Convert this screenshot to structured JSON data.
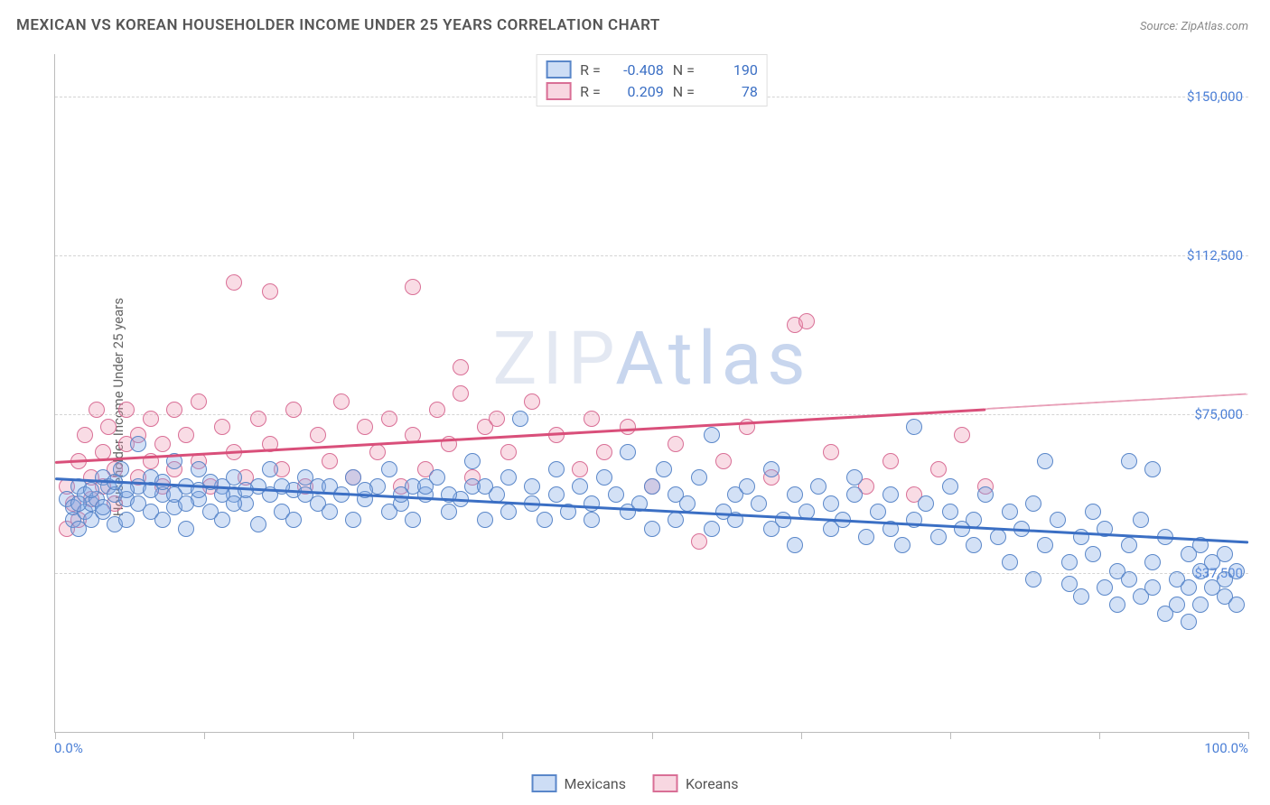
{
  "title": "MEXICAN VS KOREAN HOUSEHOLDER INCOME UNDER 25 YEARS CORRELATION CHART",
  "source_label": "Source: ",
  "source_name": "ZipAtlas.com",
  "ylabel": "Householder Income Under 25 years",
  "watermark": "ZIPAtlas",
  "watermark_color_1": "#e3e8f2",
  "watermark_color_2": "#c8d6ee",
  "chart": {
    "type": "scatter",
    "xlim": [
      0,
      100
    ],
    "ylim": [
      0,
      160000
    ],
    "xmin_label": "0.0%",
    "xmax_label": "100.0%",
    "yticks": [
      37500,
      75000,
      112500,
      150000
    ],
    "ytick_labels": [
      "$37,500",
      "$75,000",
      "$112,500",
      "$150,000"
    ],
    "xtick_positions": [
      0,
      12.5,
      25,
      37.5,
      50,
      62.5,
      75,
      87.5,
      100
    ],
    "grid_color": "#d4d4d4",
    "axis_color": "#bbbbbb",
    "background_color": "#ffffff",
    "point_radius": 9,
    "series": [
      {
        "name": "Mexicans",
        "legend_color_fill": "rgba(130,170,230,0.4)",
        "legend_color_stroke": "#5a87c9",
        "trend_color": "#3b6fc4",
        "R_label": "R =",
        "R": "-0.408",
        "N_label": "N =",
        "N": "190",
        "trend": {
          "x1": 0,
          "y1": 60000,
          "x2": 100,
          "y2": 45000,
          "dash_from_x": null
        },
        "points": [
          [
            1,
            55000
          ],
          [
            1.5,
            50000
          ],
          [
            1.5,
            53000
          ],
          [
            2,
            58000
          ],
          [
            2,
            48000
          ],
          [
            2.5,
            52000
          ],
          [
            2.5,
            56000
          ],
          [
            3,
            54000
          ],
          [
            3,
            50000
          ],
          [
            3.5,
            55000
          ],
          [
            4,
            60000
          ],
          [
            4,
            52000
          ],
          [
            4.5,
            58000
          ],
          [
            5,
            49000
          ],
          [
            5,
            56000
          ],
          [
            5.5,
            62000
          ],
          [
            6,
            50000
          ],
          [
            6,
            55000
          ],
          [
            7,
            58000
          ],
          [
            7,
            68000
          ],
          [
            8,
            52000
          ],
          [
            8,
            60000
          ],
          [
            9,
            56000
          ],
          [
            9,
            50000
          ],
          [
            10,
            64000
          ],
          [
            10,
            53000
          ],
          [
            11,
            58000
          ],
          [
            11,
            48000
          ],
          [
            12,
            55000
          ],
          [
            12,
            62000
          ],
          [
            13,
            52000
          ],
          [
            14,
            58000
          ],
          [
            14,
            50000
          ],
          [
            15,
            56000
          ],
          [
            15,
            60000
          ],
          [
            16,
            54000
          ],
          [
            17,
            58000
          ],
          [
            17,
            49000
          ],
          [
            18,
            62000
          ],
          [
            19,
            52000
          ],
          [
            20,
            57000
          ],
          [
            20,
            50000
          ],
          [
            21,
            60000
          ],
          [
            22,
            54000
          ],
          [
            22,
            58000
          ],
          [
            23,
            52000
          ],
          [
            24,
            56000
          ],
          [
            25,
            60000
          ],
          [
            25,
            50000
          ],
          [
            26,
            55000
          ],
          [
            27,
            58000
          ],
          [
            28,
            52000
          ],
          [
            28,
            62000
          ],
          [
            29,
            54000
          ],
          [
            30,
            58000
          ],
          [
            30,
            50000
          ],
          [
            31,
            56000
          ],
          [
            32,
            60000
          ],
          [
            33,
            52000
          ],
          [
            34,
            55000
          ],
          [
            35,
            58000
          ],
          [
            35,
            64000
          ],
          [
            36,
            50000
          ],
          [
            37,
            56000
          ],
          [
            38,
            60000
          ],
          [
            38,
            52000
          ],
          [
            39,
            74000
          ],
          [
            40,
            54000
          ],
          [
            40,
            58000
          ],
          [
            41,
            50000
          ],
          [
            42,
            56000
          ],
          [
            42,
            62000
          ],
          [
            43,
            52000
          ],
          [
            44,
            58000
          ],
          [
            45,
            54000
          ],
          [
            45,
            50000
          ],
          [
            46,
            60000
          ],
          [
            47,
            56000
          ],
          [
            48,
            52000
          ],
          [
            48,
            66000
          ],
          [
            49,
            54000
          ],
          [
            50,
            58000
          ],
          [
            50,
            48000
          ],
          [
            51,
            62000
          ],
          [
            52,
            50000
          ],
          [
            52,
            56000
          ],
          [
            53,
            54000
          ],
          [
            54,
            60000
          ],
          [
            55,
            48000
          ],
          [
            55,
            70000
          ],
          [
            56,
            52000
          ],
          [
            57,
            56000
          ],
          [
            57,
            50000
          ],
          [
            58,
            58000
          ],
          [
            59,
            54000
          ],
          [
            60,
            48000
          ],
          [
            60,
            62000
          ],
          [
            61,
            50000
          ],
          [
            62,
            56000
          ],
          [
            62,
            44000
          ],
          [
            63,
            52000
          ],
          [
            64,
            58000
          ],
          [
            65,
            48000
          ],
          [
            65,
            54000
          ],
          [
            66,
            50000
          ],
          [
            67,
            56000
          ],
          [
            67,
            60000
          ],
          [
            68,
            46000
          ],
          [
            69,
            52000
          ],
          [
            70,
            48000
          ],
          [
            70,
            56000
          ],
          [
            71,
            44000
          ],
          [
            72,
            50000
          ],
          [
            72,
            72000
          ],
          [
            73,
            54000
          ],
          [
            74,
            46000
          ],
          [
            75,
            52000
          ],
          [
            75,
            58000
          ],
          [
            76,
            48000
          ],
          [
            77,
            50000
          ],
          [
            77,
            44000
          ],
          [
            78,
            56000
          ],
          [
            79,
            46000
          ],
          [
            80,
            52000
          ],
          [
            80,
            40000
          ],
          [
            81,
            48000
          ],
          [
            82,
            54000
          ],
          [
            82,
            36000
          ],
          [
            83,
            44000
          ],
          [
            83,
            64000
          ],
          [
            84,
            50000
          ],
          [
            85,
            40000
          ],
          [
            85,
            35000
          ],
          [
            86,
            46000
          ],
          [
            86,
            32000
          ],
          [
            87,
            42000
          ],
          [
            87,
            52000
          ],
          [
            88,
            34000
          ],
          [
            88,
            48000
          ],
          [
            89,
            38000
          ],
          [
            89,
            30000
          ],
          [
            90,
            44000
          ],
          [
            90,
            36000
          ],
          [
            90,
            64000
          ],
          [
            91,
            32000
          ],
          [
            91,
            50000
          ],
          [
            92,
            40000
          ],
          [
            92,
            34000
          ],
          [
            92,
            62000
          ],
          [
            93,
            28000
          ],
          [
            93,
            46000
          ],
          [
            94,
            36000
          ],
          [
            94,
            30000
          ],
          [
            95,
            42000
          ],
          [
            95,
            34000
          ],
          [
            95,
            26000
          ],
          [
            96,
            38000
          ],
          [
            96,
            44000
          ],
          [
            96,
            30000
          ],
          [
            97,
            34000
          ],
          [
            97,
            40000
          ],
          [
            98,
            32000
          ],
          [
            98,
            36000
          ],
          [
            98,
            42000
          ],
          [
            99,
            30000
          ],
          [
            99,
            38000
          ],
          [
            2,
            54000
          ],
          [
            3,
            57000
          ],
          [
            4,
            53000
          ],
          [
            5,
            59000
          ],
          [
            6,
            57000
          ],
          [
            7,
            54000
          ],
          [
            8,
            57000
          ],
          [
            9,
            59000
          ],
          [
            10,
            56000
          ],
          [
            11,
            54000
          ],
          [
            12,
            57000
          ],
          [
            13,
            59000
          ],
          [
            14,
            56000
          ],
          [
            15,
            54000
          ],
          [
            16,
            57000
          ],
          [
            18,
            56000
          ],
          [
            19,
            58000
          ],
          [
            21,
            56000
          ],
          [
            23,
            58000
          ],
          [
            26,
            57000
          ],
          [
            29,
            56000
          ],
          [
            31,
            58000
          ],
          [
            33,
            56000
          ],
          [
            36,
            58000
          ]
        ]
      },
      {
        "name": "Koreans",
        "legend_color_fill": "rgba(235,140,170,0.35)",
        "legend_color_stroke": "#d96f96",
        "trend_color": "#d94f7a",
        "R_label": "R =",
        "R": "0.209",
        "N_label": "N =",
        "N": "78",
        "trend": {
          "x1": 0,
          "y1": 64000,
          "x2": 100,
          "y2": 80000,
          "dash_from_x": 78
        },
        "points": [
          [
            1,
            58000
          ],
          [
            1,
            48000
          ],
          [
            1.5,
            54000
          ],
          [
            2,
            64000
          ],
          [
            2,
            50000
          ],
          [
            2.5,
            70000
          ],
          [
            3,
            60000
          ],
          [
            3,
            55000
          ],
          [
            3.5,
            76000
          ],
          [
            4,
            66000
          ],
          [
            4,
            58000
          ],
          [
            4.5,
            72000
          ],
          [
            5,
            62000
          ],
          [
            5,
            54000
          ],
          [
            6,
            68000
          ],
          [
            6,
            76000
          ],
          [
            7,
            60000
          ],
          [
            7,
            70000
          ],
          [
            8,
            64000
          ],
          [
            8,
            74000
          ],
          [
            9,
            58000
          ],
          [
            9,
            68000
          ],
          [
            10,
            76000
          ],
          [
            10,
            62000
          ],
          [
            11,
            70000
          ],
          [
            12,
            64000
          ],
          [
            12,
            78000
          ],
          [
            13,
            58000
          ],
          [
            14,
            72000
          ],
          [
            15,
            66000
          ],
          [
            15,
            106000
          ],
          [
            16,
            60000
          ],
          [
            17,
            74000
          ],
          [
            18,
            68000
          ],
          [
            18,
            104000
          ],
          [
            19,
            62000
          ],
          [
            20,
            76000
          ],
          [
            21,
            58000
          ],
          [
            22,
            70000
          ],
          [
            23,
            64000
          ],
          [
            24,
            78000
          ],
          [
            25,
            60000
          ],
          [
            26,
            72000
          ],
          [
            27,
            66000
          ],
          [
            28,
            74000
          ],
          [
            29,
            58000
          ],
          [
            30,
            70000
          ],
          [
            30,
            105000
          ],
          [
            31,
            62000
          ],
          [
            32,
            76000
          ],
          [
            33,
            68000
          ],
          [
            34,
            80000
          ],
          [
            34,
            86000
          ],
          [
            35,
            60000
          ],
          [
            36,
            72000
          ],
          [
            37,
            74000
          ],
          [
            38,
            66000
          ],
          [
            40,
            78000
          ],
          [
            42,
            70000
          ],
          [
            44,
            62000
          ],
          [
            45,
            74000
          ],
          [
            46,
            66000
          ],
          [
            48,
            72000
          ],
          [
            50,
            58000
          ],
          [
            52,
            68000
          ],
          [
            54,
            45000
          ],
          [
            56,
            64000
          ],
          [
            58,
            72000
          ],
          [
            60,
            60000
          ],
          [
            62,
            96000
          ],
          [
            63,
            97000
          ],
          [
            65,
            66000
          ],
          [
            68,
            58000
          ],
          [
            70,
            64000
          ],
          [
            72,
            56000
          ],
          [
            74,
            62000
          ],
          [
            76,
            70000
          ],
          [
            78,
            58000
          ]
        ]
      }
    ]
  }
}
